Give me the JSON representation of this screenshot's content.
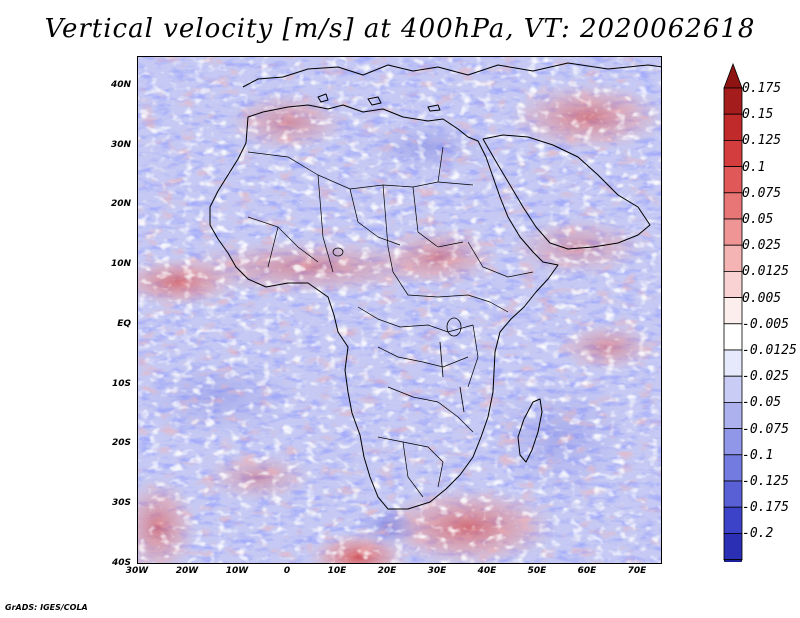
{
  "title": "Vertical velocity [m/s] at 400hPa, VT: 2020062618",
  "credit": "GrADS: IGES/COLA",
  "map": {
    "lon_range": [
      -30,
      75
    ],
    "lat_range": [
      -40,
      45
    ],
    "lat_ticks": [
      {
        "value": 40,
        "label": "40N"
      },
      {
        "value": 30,
        "label": "30N"
      },
      {
        "value": 20,
        "label": "20N"
      },
      {
        "value": 10,
        "label": "10N"
      },
      {
        "value": 0,
        "label": "EQ"
      },
      {
        "value": -10,
        "label": "10S"
      },
      {
        "value": -20,
        "label": "20S"
      },
      {
        "value": -30,
        "label": "30S"
      },
      {
        "value": -40,
        "label": "40S"
      }
    ],
    "lon_ticks": [
      {
        "value": -30,
        "label": "30W"
      },
      {
        "value": -20,
        "label": "20W"
      },
      {
        "value": -10,
        "label": "10W"
      },
      {
        "value": 0,
        "label": "0"
      },
      {
        "value": 10,
        "label": "10E"
      },
      {
        "value": 20,
        "label": "20E"
      },
      {
        "value": 30,
        "label": "30E"
      },
      {
        "value": 40,
        "label": "40E"
      },
      {
        "value": 50,
        "label": "50E"
      },
      {
        "value": 60,
        "label": "60E"
      },
      {
        "value": 70,
        "label": "70E"
      }
    ]
  },
  "colorbar": {
    "levels": [
      {
        "label": "0.175",
        "color": "#a51c1c"
      },
      {
        "label": "0.15",
        "color": "#c02a2a"
      },
      {
        "label": "0.125",
        "color": "#d43d3d"
      },
      {
        "label": "0.1",
        "color": "#e05858"
      },
      {
        "label": "0.075",
        "color": "#e87676"
      },
      {
        "label": "0.05",
        "color": "#ef9595"
      },
      {
        "label": "0.025",
        "color": "#f5b4b4"
      },
      {
        "label": "0.0125",
        "color": "#f9d3d3"
      },
      {
        "label": "0.005",
        "color": "#fdeeee"
      },
      {
        "label": "-0.005",
        "color": "#ffffff"
      },
      {
        "label": "-0.0125",
        "color": "#e6e8fb"
      },
      {
        "label": "-0.025",
        "color": "#c9cdf5"
      },
      {
        "label": "-0.05",
        "color": "#adb2ef"
      },
      {
        "label": "-0.075",
        "color": "#9197e8"
      },
      {
        "label": "-0.1",
        "color": "#747be0"
      },
      {
        "label": "-0.125",
        "color": "#5960d6"
      },
      {
        "label": "-0.175",
        "color": "#3c43c9"
      },
      {
        "label": "-0.2",
        "color": "#2a2fb4"
      }
    ],
    "top_cap_color": "#8e1414",
    "bottom_cap_color": "#1c1f9a"
  }
}
